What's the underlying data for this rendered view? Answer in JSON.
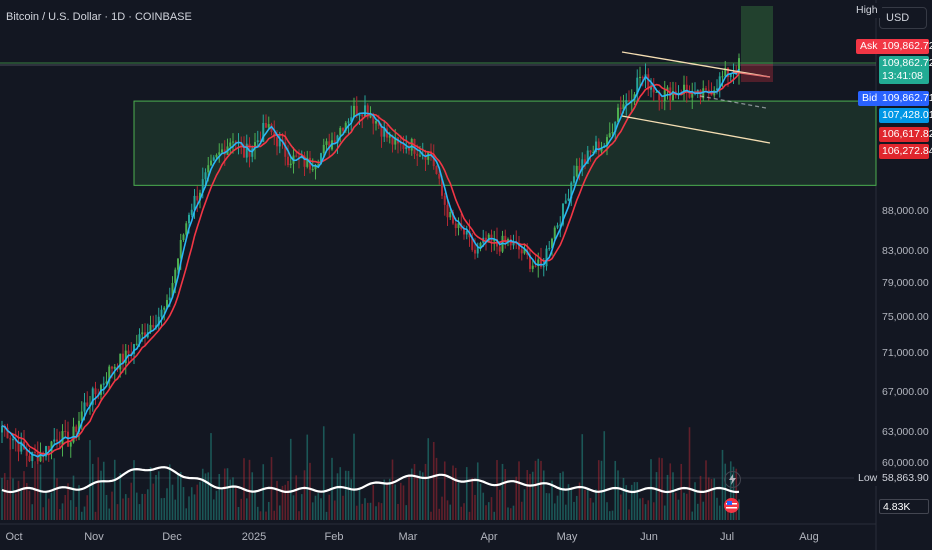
{
  "symbol": {
    "title": "Bitcoin / U.S. Dollar · 1D · COINBASE"
  },
  "currency": "USD",
  "tags": {
    "high": "High",
    "ask": "Ask",
    "bid": "Bid",
    "low": "Low"
  },
  "price_labels": {
    "ask": "109,862.72",
    "last": "109,862.72",
    "countdown": "13:41:08",
    "bid": "109,862.71",
    "ma_fast": "107,428.01",
    "ma_slow_a": "106,617.82",
    "ma_slow_b": "106,272.84",
    "low": "58,863.90",
    "volume": "4.83K"
  },
  "colors": {
    "bg": "#131722",
    "up": "#26a69a",
    "upAlt": "#4caf50",
    "down": "#b22833",
    "ma_fast": "#29b6f6",
    "ma_slow": "#f23645",
    "zone": "#4caf50",
    "channel": "#f5deb3",
    "ask": "#f23645",
    "last": "#22ab94",
    "bid": "#2962ff",
    "ma_fast_label": "#0097e6",
    "ma_slow_label": "#e0262d"
  },
  "chart_data": {
    "type": "candlestick",
    "axes": {
      "y_ticks": [
        "88,000.00",
        "83,000.00",
        "79,000.00",
        "75,000.00",
        "71,000.00",
        "67,000.00",
        "63,000.00",
        "60,000.00"
      ],
      "x_ticks": [
        "Oct",
        "Nov",
        "Dec",
        "2025",
        "Feb",
        "Mar",
        "Apr",
        "May",
        "Jun",
        "Jul",
        "Aug"
      ],
      "y_scale": "log"
    },
    "price_path": [
      [
        0,
        63500
      ],
      [
        5,
        62000
      ],
      [
        10,
        60500
      ],
      [
        15,
        61000
      ],
      [
        20,
        62500
      ],
      [
        25,
        62000
      ],
      [
        30,
        65500
      ],
      [
        35,
        67000
      ],
      [
        40,
        69500
      ],
      [
        45,
        70500
      ],
      [
        50,
        72500
      ],
      [
        55,
        74500
      ],
      [
        60,
        76000
      ],
      [
        64,
        82000
      ],
      [
        68,
        88000
      ],
      [
        72,
        91000
      ],
      [
        76,
        94000
      ],
      [
        80,
        96500
      ],
      [
        84,
        98500
      ],
      [
        88,
        96000
      ],
      [
        92,
        97500
      ],
      [
        96,
        100000
      ],
      [
        100,
        98000
      ],
      [
        104,
        95500
      ],
      [
        108,
        95000
      ],
      [
        112,
        94500
      ],
      [
        116,
        96000
      ],
      [
        120,
        98000
      ],
      [
        124,
        100500
      ],
      [
        128,
        102500
      ],
      [
        132,
        103000
      ],
      [
        136,
        101000
      ],
      [
        140,
        98500
      ],
      [
        144,
        97000
      ],
      [
        148,
        97500
      ],
      [
        152,
        96500
      ],
      [
        156,
        96000
      ],
      [
        160,
        90000
      ],
      [
        164,
        86000
      ],
      [
        168,
        85000
      ],
      [
        172,
        82500
      ],
      [
        176,
        84000
      ],
      [
        180,
        83500
      ],
      [
        184,
        84000
      ],
      [
        188,
        83000
      ],
      [
        192,
        81500
      ],
      [
        196,
        80500
      ],
      [
        200,
        85000
      ],
      [
        204,
        88000
      ],
      [
        208,
        93500
      ],
      [
        212,
        95000
      ],
      [
        216,
        97000
      ],
      [
        220,
        97500
      ],
      [
        224,
        103000
      ],
      [
        228,
        104500
      ],
      [
        232,
        108000
      ],
      [
        236,
        106500
      ],
      [
        240,
        105000
      ],
      [
        244,
        105500
      ],
      [
        248,
        106000
      ],
      [
        252,
        104500
      ],
      [
        256,
        105000
      ],
      [
        260,
        107000
      ],
      [
        264,
        108500
      ],
      [
        268,
        109862
      ]
    ],
    "moving_averages": [
      {
        "color_key": "ma_fast",
        "current": 107428.01
      },
      {
        "color_key": "ma_slow",
        "current": 106617.82
      }
    ],
    "zones": [
      {
        "from": 91500,
        "to": 104000,
        "start_day": 48,
        "end_day": 330
      }
    ],
    "levels": {
      "ask": 109862.72,
      "bid": 109862.71,
      "low": 58863.9
    }
  }
}
